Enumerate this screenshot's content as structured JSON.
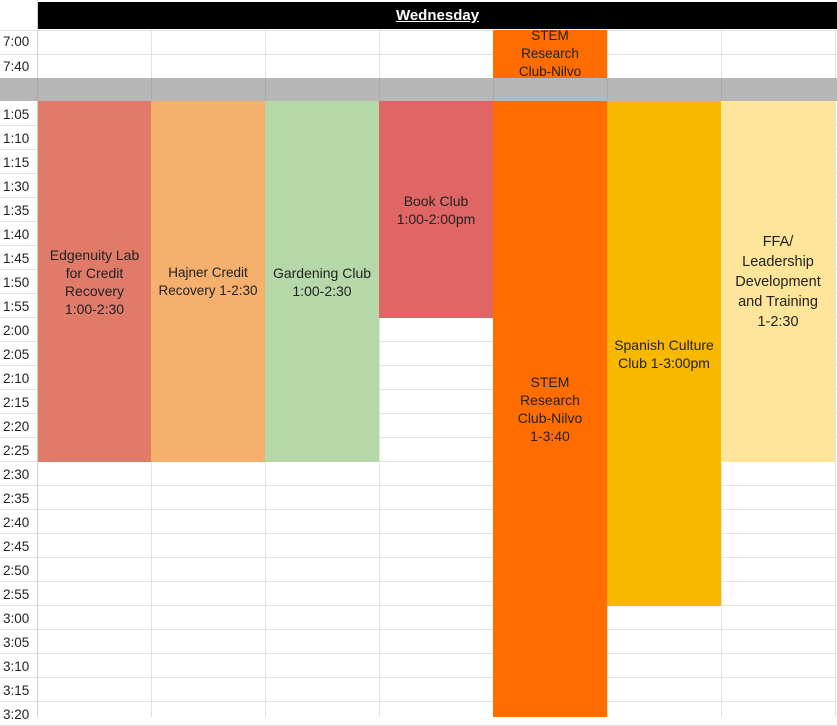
{
  "header": {
    "day": "Wednesday"
  },
  "times_morning": [
    "7:00",
    "7:40"
  ],
  "times_afternoon": [
    "1:05",
    "1:10",
    "1:15",
    "1:30",
    "1:35",
    "1:40",
    "1:45",
    "1:50",
    "1:55",
    "2:00",
    "2:05",
    "2:10",
    "2:15",
    "2:20",
    "2:25",
    "2:30",
    "2:35",
    "2:40",
    "2:45",
    "2:50",
    "2:55",
    "3:00",
    "3:05",
    "3:10",
    "3:15",
    "3:20"
  ],
  "events": {
    "stem_morning": "STEM\nResearch\nClub-Nilvo",
    "edgenuity": "Edgenuity Lab\nfor Credit\nRecovery\n1:00-2:30",
    "hajner": "Hajner Credit\nRecovery 1-2:30",
    "gardening": "Gardening Club\n1:00-2:30",
    "book_club": "Book Club\n1:00-2:00pm",
    "stem_afternoon": "STEM\nResearch\nClub-Nilvo\n1-3:40",
    "spanish": "Spanish Culture\nClub 1-3:00pm",
    "ffa": "FFA/\nLeadership\nDevelopment\nand Training\n1-2:30"
  },
  "colors": {
    "edgenuity": "#e07b6a",
    "hajner": "#f5b06d",
    "gardening": "#b6d7a8",
    "book_club": "#e06666",
    "stem": "#ff6d01",
    "spanish": "#f9b800",
    "ffa": "#ffe599",
    "header": "#000000",
    "band": "#b7b7b7"
  }
}
